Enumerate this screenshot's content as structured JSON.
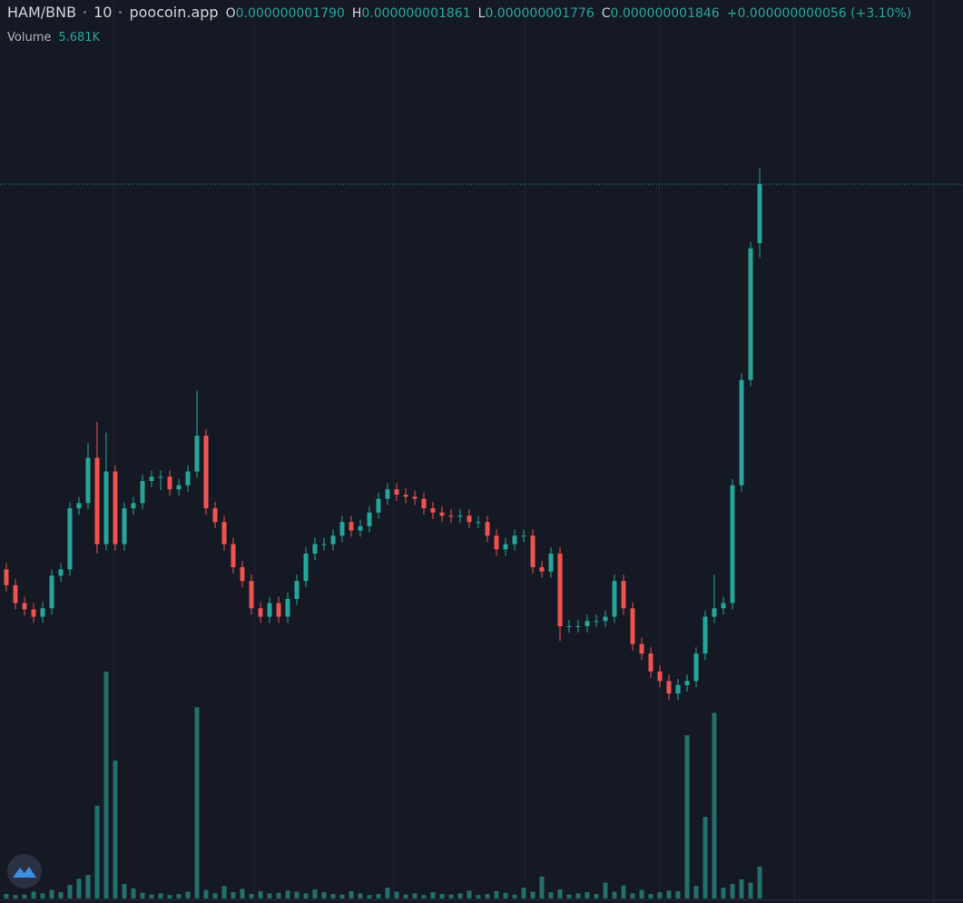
{
  "chart_data": {
    "type": "candlestick",
    "title": "HAM/BNB",
    "interval": "10",
    "source": "poocoin.app",
    "ohlc_legend": [
      {
        "key": "O",
        "value": "0.000000001790"
      },
      {
        "key": "H",
        "value": "0.000000001861"
      },
      {
        "key": "L",
        "value": "0.000000001776"
      },
      {
        "key": "C",
        "value": "0.000000001846"
      }
    ],
    "change": "+0.000000000056 (+3.10%)",
    "ylim": [
      1.163e-09,
      2.021e-09
    ],
    "last_price_line": true,
    "series": [
      {
        "up_color": "#26a69a",
        "down_color": "#ef5350",
        "open": [
          1.48e-09,
          1.465e-09,
          1.448e-09,
          1.442e-09,
          1.435e-09,
          1.443e-09,
          1.474e-09,
          1.48e-09,
          1.538e-09,
          1.543e-09,
          1.586e-09,
          1.504e-09,
          1.573e-09,
          1.504e-09,
          1.538e-09,
          1.543e-09,
          1.564e-09,
          1.568e-09,
          1.568e-09,
          1.556e-09,
          1.56e-09,
          1.573e-09,
          1.607e-09,
          1.538e-09,
          1.525e-09,
          1.504e-09,
          1.482e-09,
          1.469e-09,
          1.443e-09,
          1.435e-09,
          1.448e-09,
          1.435e-09,
          1.452e-09,
          1.469e-09,
          1.495e-09,
          1.504e-09,
          1.504e-09,
          1.512e-09,
          1.525e-09,
          1.517e-09,
          1.521e-09,
          1.534e-09,
          1.547e-09,
          1.556e-09,
          1.551e-09,
          1.549e-09,
          1.547e-09,
          1.538e-09,
          1.534e-09,
          1.531e-09,
          1.53e-09,
          1.531e-09,
          1.525e-09,
          1.525e-09,
          1.512e-09,
          1.499e-09,
          1.504e-09,
          1.512e-09,
          1.512e-09,
          1.482e-09,
          1.478e-09,
          1.495e-09,
          1.426e-09,
          1.426e-09,
          1.426e-09,
          1.431e-09,
          1.431e-09,
          1.435e-09,
          1.469e-09,
          1.443e-09,
          1.409e-09,
          1.4e-09,
          1.383e-09,
          1.374e-09,
          1.362e-09,
          1.37e-09,
          1.374e-09,
          1.4e-09,
          1.435e-09,
          1.443e-09,
          1.448e-09,
          1.56e-09,
          1.66e-09,
          1.79e-09
        ],
        "high": [
          1.486e-09,
          1.471e-09,
          1.454e-09,
          1.448e-09,
          1.449e-09,
          1.48e-09,
          1.486e-09,
          1.544e-09,
          1.549e-09,
          1.6e-09,
          1.62e-09,
          1.61e-09,
          1.579e-09,
          1.544e-09,
          1.549e-09,
          1.57e-09,
          1.574e-09,
          1.574e-09,
          1.574e-09,
          1.566e-09,
          1.579e-09,
          1.65e-09,
          1.613e-09,
          1.544e-09,
          1.531e-09,
          1.51e-09,
          1.488e-09,
          1.475e-09,
          1.449e-09,
          1.454e-09,
          1.454e-09,
          1.458e-09,
          1.475e-09,
          1.501e-09,
          1.51e-09,
          1.51e-09,
          1.518e-09,
          1.531e-09,
          1.531e-09,
          1.527e-09,
          1.54e-09,
          1.553e-09,
          1.562e-09,
          1.562e-09,
          1.557e-09,
          1.555e-09,
          1.553e-09,
          1.544e-09,
          1.54e-09,
          1.537e-09,
          1.537e-09,
          1.537e-09,
          1.531e-09,
          1.531e-09,
          1.518e-09,
          1.51e-09,
          1.518e-09,
          1.518e-09,
          1.518e-09,
          1.488e-09,
          1.501e-09,
          1.501e-09,
          1.432e-09,
          1.432e-09,
          1.437e-09,
          1.437e-09,
          1.441e-09,
          1.475e-09,
          1.475e-09,
          1.449e-09,
          1.415e-09,
          1.406e-09,
          1.389e-09,
          1.38e-09,
          1.376e-09,
          1.38e-09,
          1.406e-09,
          1.441e-09,
          1.475e-09,
          1.454e-09,
          1.566e-09,
          1.666e-09,
          1.791e-09,
          1.861e-09
        ],
        "low": [
          1.459e-09,
          1.442e-09,
          1.436e-09,
          1.429e-09,
          1.429e-09,
          1.437e-09,
          1.468e-09,
          1.474e-09,
          1.532e-09,
          1.537e-09,
          1.495e-09,
          1.498e-09,
          1.498e-09,
          1.498e-09,
          1.532e-09,
          1.537e-09,
          1.558e-09,
          1.555e-09,
          1.55e-09,
          1.55e-09,
          1.554e-09,
          1.567e-09,
          1.532e-09,
          1.519e-09,
          1.498e-09,
          1.476e-09,
          1.463e-09,
          1.437e-09,
          1.429e-09,
          1.429e-09,
          1.429e-09,
          1.429e-09,
          1.446e-09,
          1.463e-09,
          1.489e-09,
          1.498e-09,
          1.498e-09,
          1.506e-09,
          1.511e-09,
          1.511e-09,
          1.515e-09,
          1.528e-09,
          1.541e-09,
          1.545e-09,
          1.543e-09,
          1.541e-09,
          1.532e-09,
          1.528e-09,
          1.525e-09,
          1.524e-09,
          1.524e-09,
          1.519e-09,
          1.519e-09,
          1.506e-09,
          1.493e-09,
          1.493e-09,
          1.498e-09,
          1.506e-09,
          1.476e-09,
          1.472e-09,
          1.472e-09,
          1.412e-09,
          1.42e-09,
          1.42e-09,
          1.42e-09,
          1.425e-09,
          1.425e-09,
          1.429e-09,
          1.437e-09,
          1.403e-09,
          1.394e-09,
          1.377e-09,
          1.368e-09,
          1.356e-09,
          1.356e-09,
          1.364e-09,
          1.368e-09,
          1.394e-09,
          1.429e-09,
          1.437e-09,
          1.442e-09,
          1.554e-09,
          1.654e-09,
          1.776e-09
        ],
        "close": [
          1.465e-09,
          1.448e-09,
          1.442e-09,
          1.435e-09,
          1.443e-09,
          1.474e-09,
          1.48e-09,
          1.538e-09,
          1.543e-09,
          1.586e-09,
          1.504e-09,
          1.573e-09,
          1.504e-09,
          1.538e-09,
          1.543e-09,
          1.564e-09,
          1.568e-09,
          1.568e-09,
          1.556e-09,
          1.56e-09,
          1.573e-09,
          1.607e-09,
          1.538e-09,
          1.525e-09,
          1.504e-09,
          1.482e-09,
          1.469e-09,
          1.443e-09,
          1.435e-09,
          1.448e-09,
          1.435e-09,
          1.452e-09,
          1.469e-09,
          1.495e-09,
          1.504e-09,
          1.504e-09,
          1.512e-09,
          1.525e-09,
          1.517e-09,
          1.521e-09,
          1.534e-09,
          1.547e-09,
          1.556e-09,
          1.551e-09,
          1.549e-09,
          1.547e-09,
          1.538e-09,
          1.534e-09,
          1.531e-09,
          1.53e-09,
          1.531e-09,
          1.525e-09,
          1.525e-09,
          1.512e-09,
          1.499e-09,
          1.504e-09,
          1.512e-09,
          1.512e-09,
          1.482e-09,
          1.478e-09,
          1.495e-09,
          1.426e-09,
          1.426e-09,
          1.426e-09,
          1.431e-09,
          1.431e-09,
          1.435e-09,
          1.469e-09,
          1.443e-09,
          1.409e-09,
          1.4e-09,
          1.383e-09,
          1.374e-09,
          1.362e-09,
          1.37e-09,
          1.374e-09,
          1.4e-09,
          1.435e-09,
          1.443e-09,
          1.448e-09,
          1.56e-09,
          1.66e-09,
          1.785e-09,
          1.846e-09
        ]
      }
    ],
    "volume": {
      "name": "Volume",
      "label": "5.681K",
      "color": "#26807a",
      "ylim": [
        0,
        50000
      ],
      "values": [
        800,
        600,
        700,
        1200,
        900,
        1500,
        1100,
        2400,
        3500,
        4200,
        16500,
        40300,
        24500,
        2600,
        1800,
        1000,
        700,
        900,
        600,
        800,
        1200,
        34000,
        1500,
        900,
        2200,
        1100,
        1700,
        800,
        1300,
        900,
        1000,
        1400,
        1200,
        900,
        1600,
        1100,
        800,
        700,
        1300,
        900,
        600,
        800,
        1900,
        1200,
        700,
        900,
        600,
        1100,
        800,
        700,
        900,
        1400,
        600,
        800,
        1300,
        1000,
        700,
        1900,
        1200,
        3900,
        1100,
        1600,
        700,
        900,
        1100,
        800,
        2800,
        1200,
        2300,
        900,
        1500,
        800,
        1100,
        1400,
        1300,
        29000,
        2200,
        14500,
        33000,
        1900,
        2600,
        3400,
        2800,
        5681
      ]
    }
  }
}
